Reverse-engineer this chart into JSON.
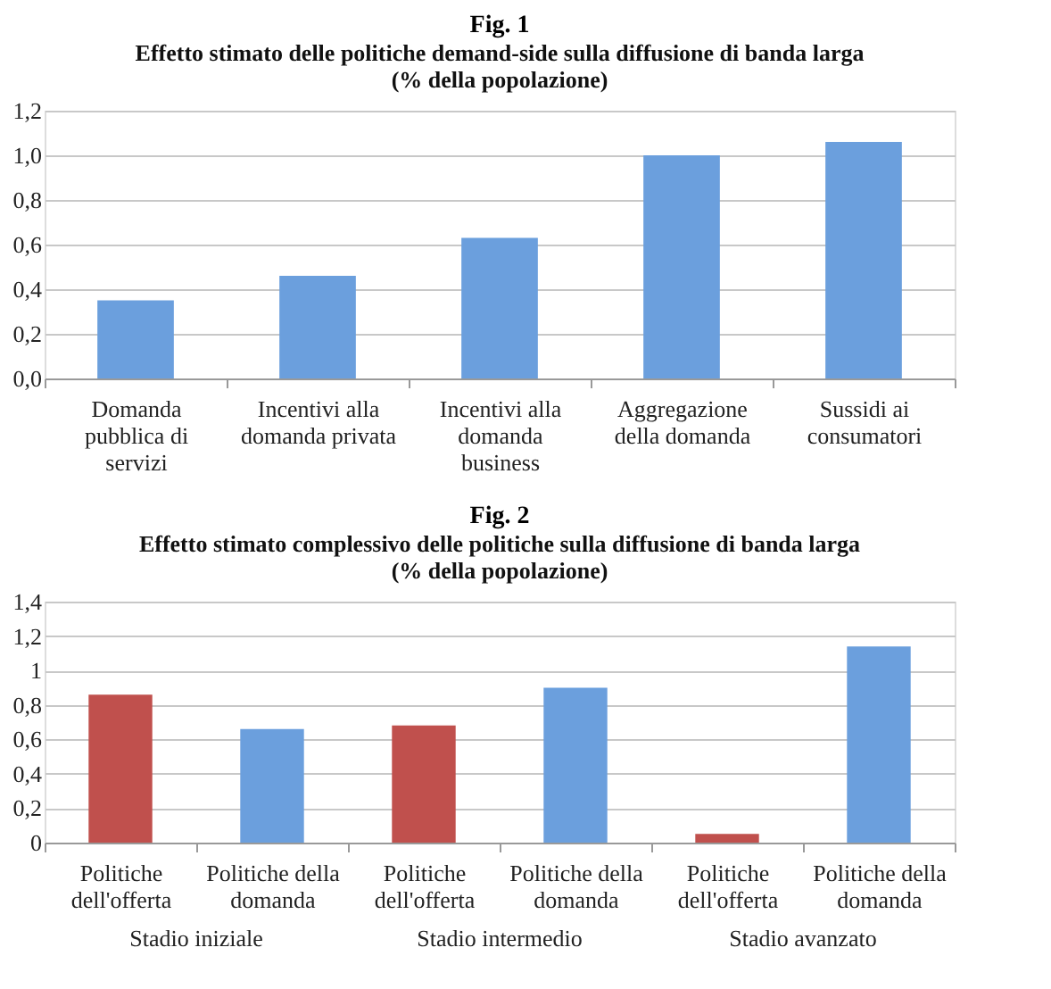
{
  "chart_data": [
    {
      "type": "bar",
      "title": "Fig. 1",
      "subtitle": "Effetto stimato  delle politiche demand-side sulla diffusione di banda larga (% della popolazione)",
      "categories": [
        "Domanda pubblica di servizi",
        "Incentivi alla domanda privata",
        "Incentivi alla domanda business",
        "Aggregazione della domanda",
        "Sussidi ai consumatori"
      ],
      "values": [
        0.35,
        0.46,
        0.63,
        1.0,
        1.06
      ],
      "color": "#6b9fdd",
      "ylim": [
        0,
        1.2
      ],
      "yticks": [
        {
          "value": 0,
          "label": "0,0"
        },
        {
          "value": 0.2,
          "label": "0,2"
        },
        {
          "value": 0.4,
          "label": "0,4"
        },
        {
          "value": 0.6,
          "label": "0,6"
        },
        {
          "value": 0.8,
          "label": "0,8"
        },
        {
          "value": 1.0,
          "label": "1,0"
        },
        {
          "value": 1.2,
          "label": "1,2"
        }
      ],
      "grid": "y"
    },
    {
      "type": "bar",
      "title": "Fig. 2",
      "subtitle": "Effetto stimato  complessivo delle politiche sulla diffusione di banda larga (% della popolazione)",
      "categories": [
        "Politiche dell'offerta",
        "Politiche della domanda",
        "Politiche dell'offerta",
        "Politiche della domanda",
        "Politiche dell'offerta",
        "Politiche della domanda"
      ],
      "values": [
        0.86,
        0.66,
        0.68,
        0.9,
        0.05,
        1.14
      ],
      "colors": [
        "#c0504d",
        "#6b9fdd",
        "#c0504d",
        "#6b9fdd",
        "#c0504d",
        "#6b9fdd"
      ],
      "ylim": [
        0,
        1.4
      ],
      "yticks": [
        0,
        {
          "value": 0.2,
          "label": "0,2"
        },
        {
          "value": 0.4,
          "label": "0,4"
        },
        {
          "value": 0.6,
          "label": "0,6"
        },
        {
          "value": 0.8,
          "label": "0,8"
        },
        1,
        {
          "value": 1.2,
          "label": "1,2"
        },
        {
          "value": 1.4,
          "label": "1,4"
        }
      ],
      "grid": "y",
      "annotations": [
        "Stadio iniziale",
        "Stadio intermedio",
        "Stadio avanzato"
      ]
    }
  ]
}
